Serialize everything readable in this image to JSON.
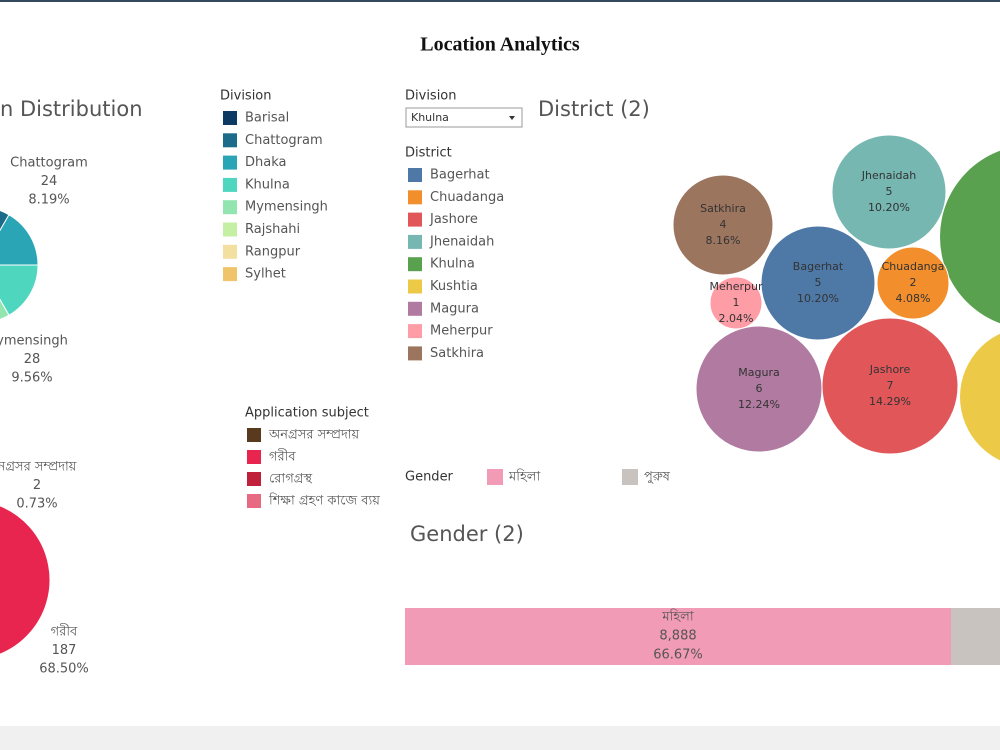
{
  "header": {
    "title": "Location Analytics"
  },
  "division_chart": {
    "title": "n Distribution",
    "labels": [
      {
        "name": "Chattogram",
        "count": 24,
        "percent": "8.19%"
      },
      {
        "name": "ymensingh",
        "count": 28,
        "percent": "9.56%"
      }
    ]
  },
  "division_legend": {
    "title": "Division",
    "items": [
      {
        "label": "Barisal",
        "color": "#0d3a63"
      },
      {
        "label": "Chattogram",
        "color": "#1d6b8a"
      },
      {
        "label": "Dhaka",
        "color": "#2aa5b5"
      },
      {
        "label": "Khulna",
        "color": "#4fd6be"
      },
      {
        "label": "Mymensingh",
        "color": "#93e5b0"
      },
      {
        "label": "Rajshahi",
        "color": "#c5f0a4"
      },
      {
        "label": "Rangpur",
        "color": "#f3dfa0"
      },
      {
        "label": "Sylhet",
        "color": "#f0c46a"
      }
    ]
  },
  "filter": {
    "label": "Division",
    "value": "Khulna"
  },
  "district_legend": {
    "title": "District",
    "items": [
      {
        "label": "Bagerhat",
        "color": "#4e79a7"
      },
      {
        "label": "Chuadanga",
        "color": "#f28e2b"
      },
      {
        "label": "Jashore",
        "color": "#e15759"
      },
      {
        "label": "Jhenaidah",
        "color": "#76b7b2"
      },
      {
        "label": "Khulna",
        "color": "#59a14f"
      },
      {
        "label": "Kushtia",
        "color": "#edc948"
      },
      {
        "label": "Magura",
        "color": "#b07aa1"
      },
      {
        "label": "Meherpur",
        "color": "#ff9da7"
      },
      {
        "label": "Satkhira",
        "color": "#9c755f"
      }
    ]
  },
  "district_chart": {
    "title": "District (2)",
    "bubbles": [
      {
        "name": "Satkhira",
        "count": 4,
        "percent": "8.16%"
      },
      {
        "name": "Jhenaidah",
        "count": 5,
        "percent": "10.20%"
      },
      {
        "name": "Bagerhat",
        "count": 5,
        "percent": "10.20%"
      },
      {
        "name": "Chuadanga",
        "count": 2,
        "percent": "4.08%"
      },
      {
        "name": "Meherpur",
        "count": 1,
        "percent": "2.04%"
      },
      {
        "name": "Magura",
        "count": 6,
        "percent": "12.24%"
      },
      {
        "name": "Jashore",
        "count": 7,
        "percent": "14.29%"
      }
    ]
  },
  "subject_legend": {
    "title": "Application subject",
    "items": [
      {
        "label": "অনগ্রসর সম্প্রদায়",
        "color": "#5a3a1e"
      },
      {
        "label": "গরীব",
        "color": "#e8254e"
      },
      {
        "label": "রোগগ্রস্থ",
        "color": "#c0203a"
      },
      {
        "label": "শিক্ষা গ্রহণ কাজে ব্যয়",
        "color": "#e86a82"
      }
    ]
  },
  "subject_chart": {
    "labels": [
      {
        "name": "নগ্রসর সম্প্রদায়",
        "count": 2,
        "percent": "0.73%"
      },
      {
        "name": "গরীব",
        "count": 187,
        "percent": "68.50%"
      }
    ]
  },
  "gender_legend": {
    "title": "Gender",
    "items": [
      {
        "label": "মহিলা",
        "color": "#f29bb6"
      },
      {
        "label": "পুরুষ",
        "color": "#c8c3bf"
      }
    ]
  },
  "gender_chart": {
    "title": "Gender (2)",
    "bars": [
      {
        "name": "মহিলা",
        "count": "8,888",
        "percent": "66.67%"
      }
    ]
  }
}
